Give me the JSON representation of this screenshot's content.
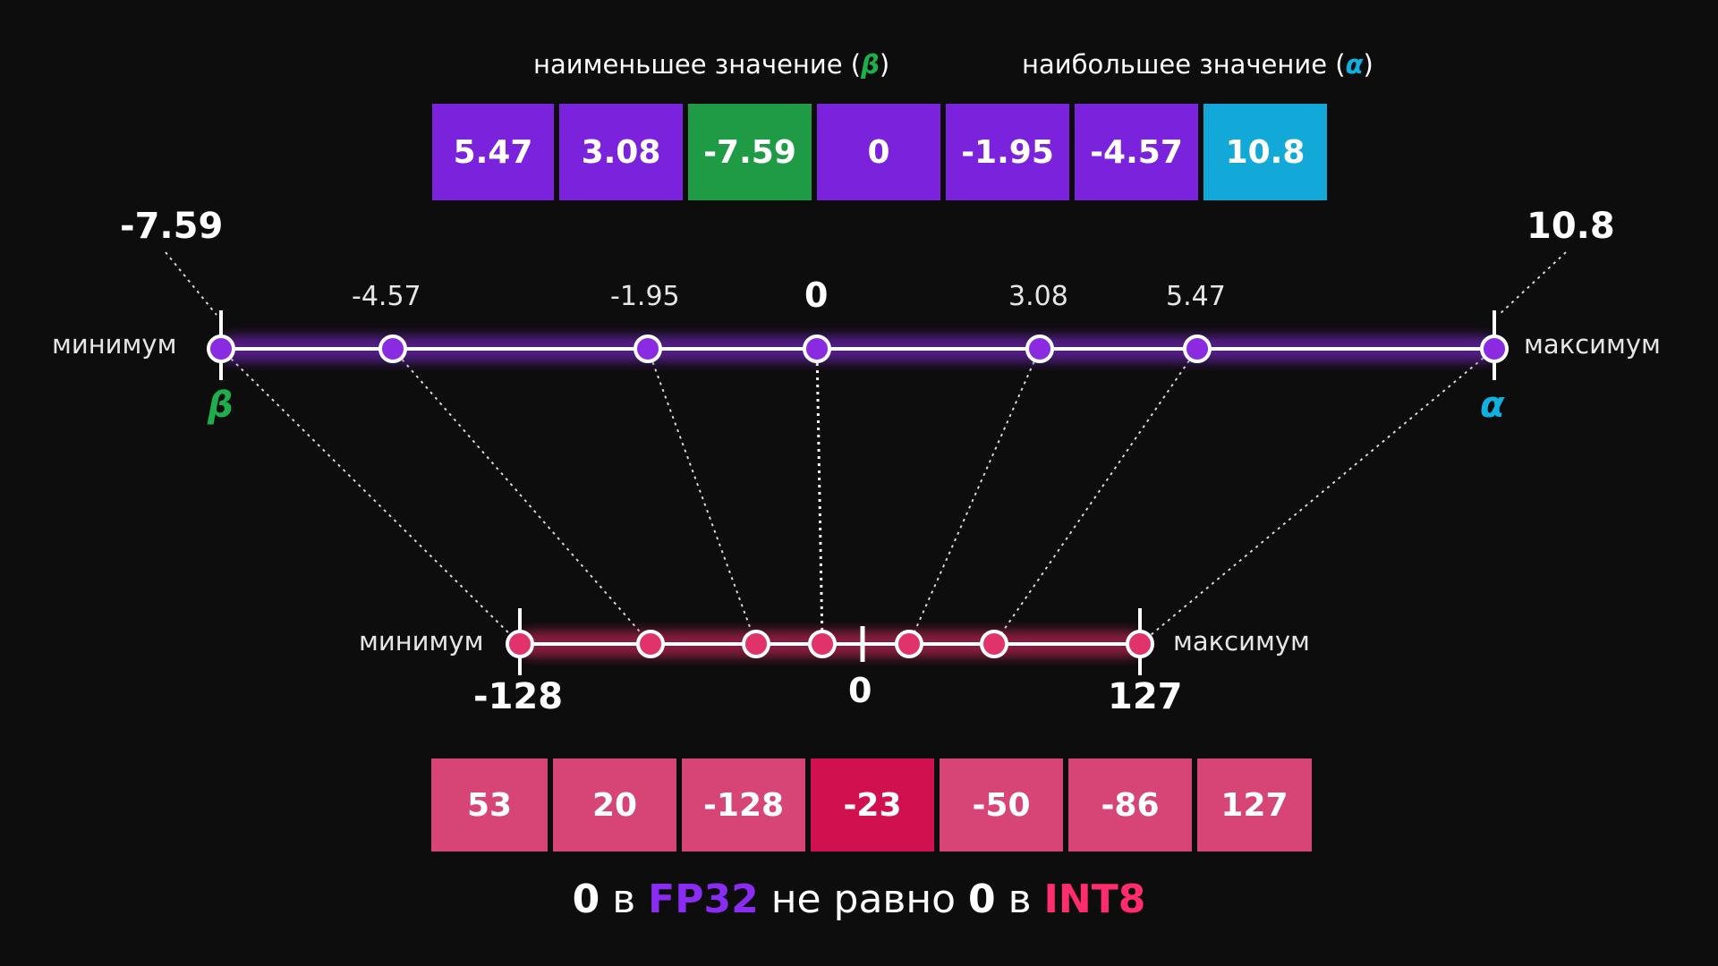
{
  "header": {
    "min_text": "наименьшее значение (",
    "min_symbol": "β",
    "max_text": "наибольшее значение (",
    "max_symbol": "α",
    "close_paren": ")"
  },
  "colors": {
    "background": "#0d0d0d",
    "fp32_purple": "#7a22dc",
    "min_green": "#1fae4c",
    "max_cyan": "#12a8d8",
    "int8_pink": "#d64576",
    "int8_selected": "#d11050"
  },
  "fp32_cells": [
    "5.47",
    "3.08",
    "-7.59",
    "0",
    "-1.95",
    "-4.57",
    "10.8"
  ],
  "int8_cells": [
    "53",
    "20",
    "-128",
    "-23",
    "-50",
    "-86",
    "127"
  ],
  "fp32_axis": {
    "left_label": "минимум",
    "right_label": "максимум",
    "min_value": "-7.59",
    "max_value": "10.8",
    "beta": "β",
    "alpha": "α",
    "points": [
      "-4.57",
      "-1.95",
      "0",
      "3.08",
      "5.47"
    ]
  },
  "int8_axis": {
    "left_label": "минимум",
    "right_label": "максимум",
    "min_value": "-128",
    "zero": "0",
    "max_value": "127"
  },
  "footer": {
    "zero1": "0",
    "v1": " в ",
    "fp32": "FP32",
    "middle": " не равно ",
    "zero2": "0",
    "v2": " в ",
    "int8": "INT8"
  }
}
